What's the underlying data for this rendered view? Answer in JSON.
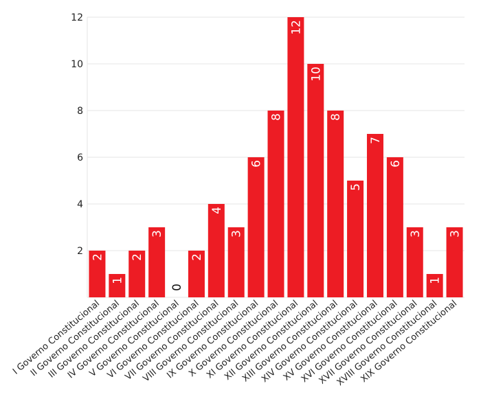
{
  "chart_data": {
    "type": "bar",
    "title": "",
    "xlabel": "",
    "ylabel": "",
    "categories": [
      "I Governo Constitucional",
      "II Governo Constitucional",
      "III Governo Constitucional",
      "IV Governo Constitucional",
      "V Governo Constitucional",
      "VI Governo Constitucional",
      "VII Governo Constitucional",
      "VIII Governo Constitucional",
      "IX Governo Constitucional",
      "X Governo Constitucional",
      "XI Governo Constitucional",
      "XII Governo Constitucional",
      "XIII Governo Constitucional",
      "XIV Governo Constitucional",
      "XV Governo Constitucional",
      "XVI Governo Constitucional",
      "XVII Governo Constitucional",
      "XVIII Governo Constitucional",
      "XIX Governo Constitucional"
    ],
    "values": [
      2,
      1,
      2,
      3,
      0,
      2,
      4,
      3,
      6,
      8,
      12,
      10,
      8,
      5,
      7,
      6,
      3,
      1,
      3
    ],
    "value_labels": [
      "2",
      "1",
      "2",
      "3",
      "0",
      "2",
      "4",
      "3",
      "6",
      "8",
      "12",
      "10",
      "8",
      "5",
      "7",
      "6",
      "3",
      "1",
      "3"
    ],
    "ylim": [
      0,
      12
    ],
    "yticks": [
      "2",
      "4",
      "6",
      "8",
      "10",
      "12"
    ],
    "grid": true,
    "legend": "none",
    "colors": {
      "bar": "#ed1c24",
      "label_inside": "#ffffff",
      "label_outside": "#111111"
    }
  }
}
